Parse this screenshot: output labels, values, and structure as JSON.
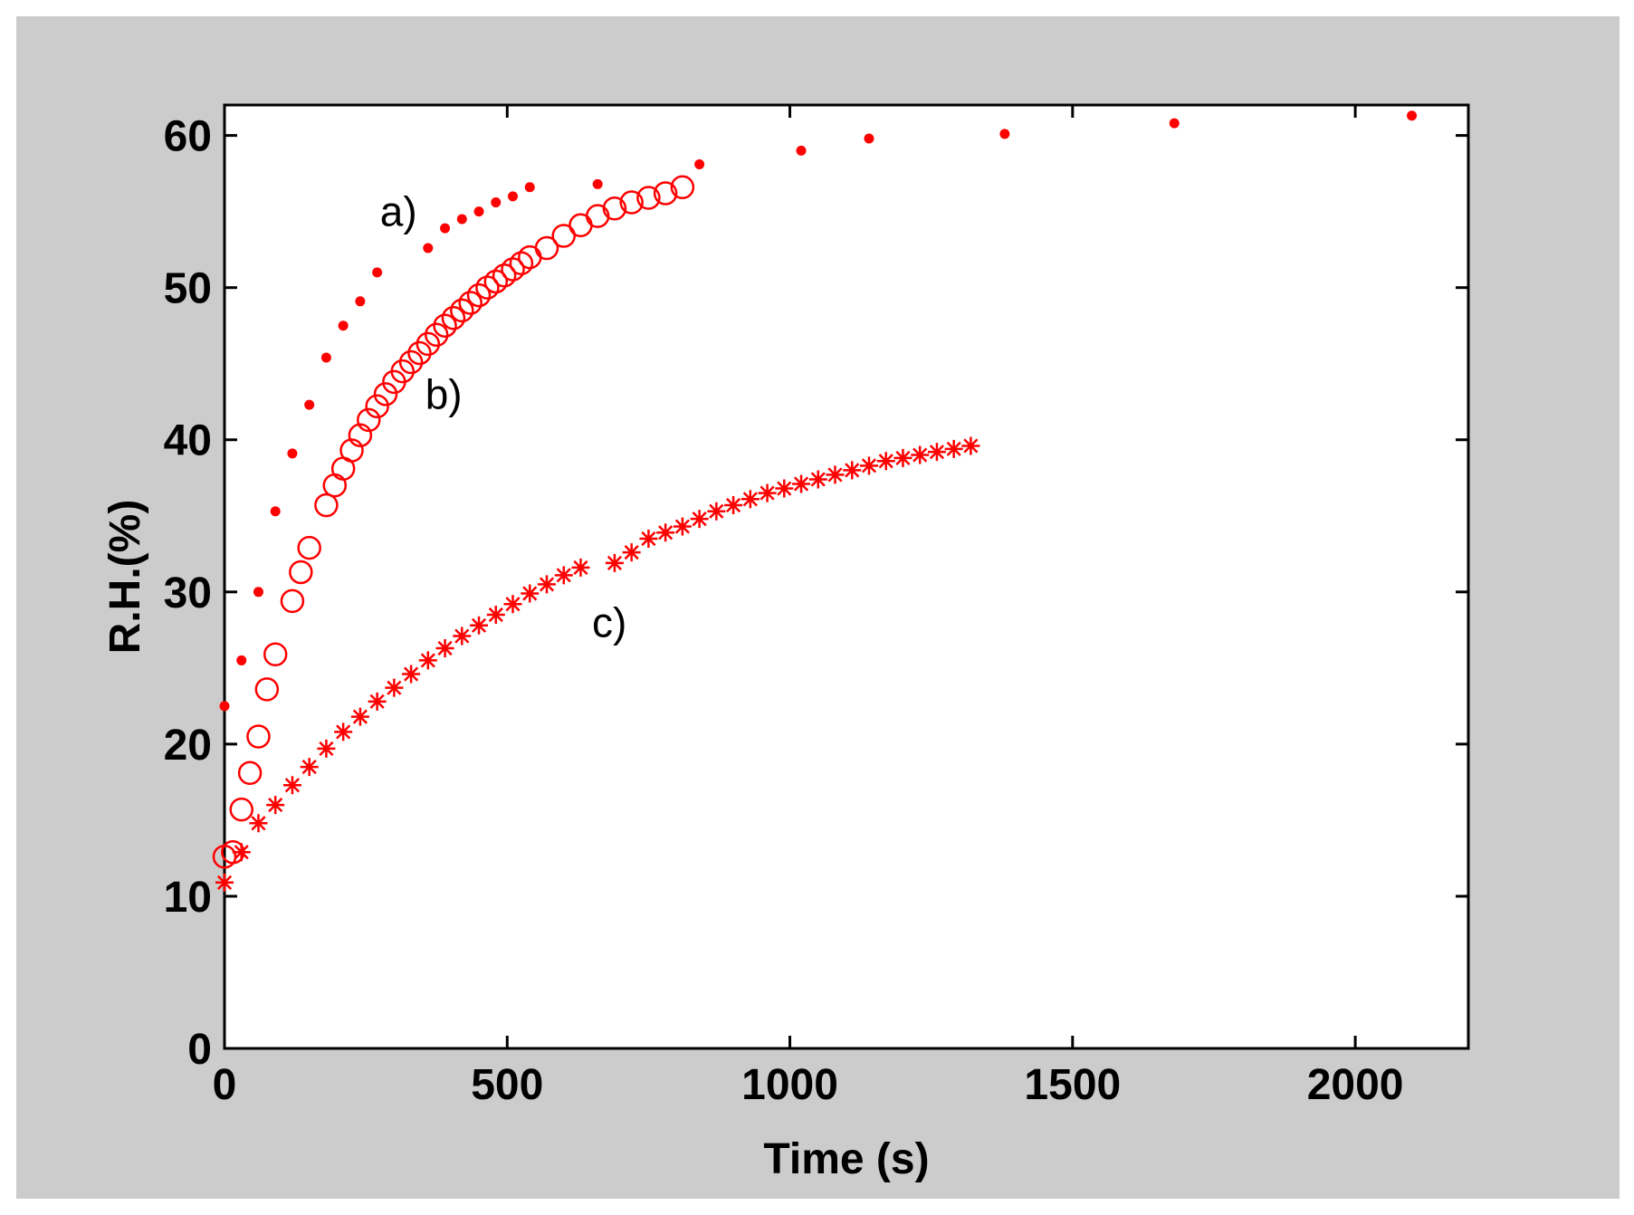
{
  "chart_data": {
    "type": "scatter",
    "title": "",
    "xlabel": "Time (s)",
    "ylabel": "R.H.(%)",
    "xlim": [
      0,
      2200
    ],
    "ylim": [
      0,
      62
    ],
    "xticks": [
      "0",
      "500",
      "1000",
      "1500",
      "2000"
    ],
    "yticks": [
      "0",
      "10",
      "20",
      "30",
      "40",
      "50",
      "60"
    ],
    "grid": false,
    "legend": "none",
    "colors": {
      "series": "#ff0000",
      "background": "#cccccc",
      "plot": "#ffffff"
    },
    "annotations": [
      {
        "text": "a)",
        "x": 275,
        "y": 55.0
      },
      {
        "text": "b)",
        "x": 355,
        "y": 43.0
      },
      {
        "text": "c)",
        "x": 650,
        "y": 28.0
      }
    ],
    "series": [
      {
        "marker": "dot",
        "x": [
          0,
          30,
          60,
          90,
          120,
          150,
          180,
          210,
          240,
          270,
          360,
          390,
          420,
          450,
          480,
          510,
          540,
          660,
          840,
          1020,
          1140,
          1380,
          1680,
          2100
        ],
        "y": [
          22.5,
          25.5,
          30.0,
          35.3,
          39.1,
          42.3,
          45.4,
          47.5,
          49.1,
          51.0,
          52.6,
          53.9,
          54.5,
          55.0,
          55.6,
          56.0,
          56.6,
          56.8,
          58.1,
          59.0,
          59.8,
          60.1,
          60.8,
          61.3
        ]
      },
      {
        "marker": "circle",
        "x": [
          0,
          15,
          30,
          45,
          60,
          75,
          90,
          120,
          135,
          150,
          180,
          195,
          210,
          225,
          240,
          255,
          270,
          285,
          300,
          315,
          330,
          345,
          360,
          375,
          390,
          405,
          420,
          435,
          450,
          465,
          480,
          495,
          510,
          525,
          540,
          570,
          600,
          630,
          660,
          690,
          720,
          750,
          780,
          810
        ],
        "y": [
          12.6,
          12.9,
          15.7,
          18.1,
          20.5,
          23.6,
          25.9,
          29.4,
          31.3,
          32.9,
          35.7,
          37.0,
          38.1,
          39.3,
          40.3,
          41.3,
          42.2,
          43.0,
          43.8,
          44.5,
          45.1,
          45.7,
          46.3,
          46.9,
          47.5,
          48.0,
          48.5,
          49.0,
          49.5,
          50.0,
          50.4,
          50.8,
          51.2,
          51.6,
          52.0,
          52.6,
          53.4,
          54.1,
          54.7,
          55.2,
          55.6,
          55.9,
          56.2,
          56.6
        ]
      },
      {
        "marker": "asterisk",
        "x": [
          0,
          30,
          60,
          90,
          120,
          150,
          180,
          210,
          240,
          270,
          300,
          330,
          360,
          390,
          420,
          450,
          480,
          510,
          540,
          570,
          600,
          630,
          690,
          720,
          750,
          780,
          810,
          840,
          870,
          900,
          930,
          960,
          990,
          1020,
          1050,
          1080,
          1110,
          1140,
          1170,
          1200,
          1230,
          1260,
          1290,
          1320
        ],
        "y": [
          10.9,
          12.9,
          14.8,
          16.0,
          17.3,
          18.5,
          19.7,
          20.8,
          21.8,
          22.8,
          23.7,
          24.6,
          25.5,
          26.3,
          27.1,
          27.8,
          28.5,
          29.2,
          29.9,
          30.5,
          31.1,
          31.6,
          31.9,
          32.6,
          33.5,
          33.9,
          34.3,
          34.8,
          35.3,
          35.7,
          36.1,
          36.5,
          36.8,
          37.1,
          37.4,
          37.7,
          38.0,
          38.3,
          38.6,
          38.8,
          39.0,
          39.2,
          39.4,
          39.6
        ]
      }
    ]
  }
}
